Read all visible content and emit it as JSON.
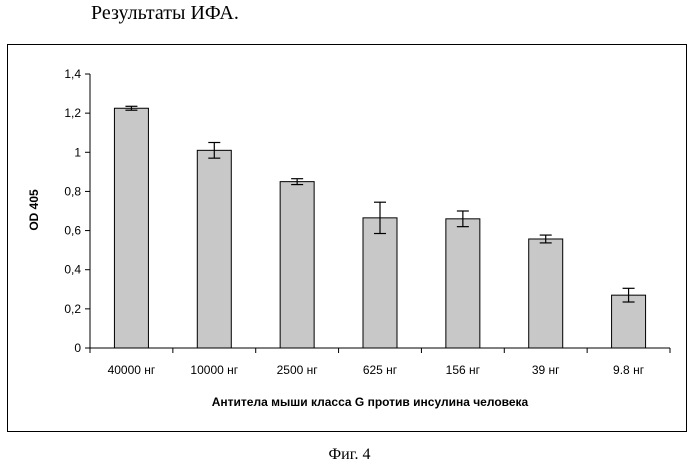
{
  "page": {
    "heading": "Результаты ИФА.",
    "caption": "Фиг. 4"
  },
  "colors": {
    "bar_fill": "#c8c8c8",
    "bar_stroke": "#000000",
    "axis": "#000000"
  },
  "chart_data": {
    "type": "bar",
    "title": "",
    "xlabel": "Антитела мыши класса G против инсулина человека",
    "ylabel": "OD 405",
    "categories": [
      "40000 нг",
      "10000 нг",
      "2500 нг",
      "625 нг",
      "156 нг",
      "39 нг",
      "9.8 нг"
    ],
    "values": [
      1.225,
      1.01,
      0.85,
      0.665,
      0.66,
      0.557,
      0.27
    ],
    "error": [
      0.01,
      0.04,
      0.015,
      0.08,
      0.04,
      0.02,
      0.035
    ],
    "ylim": [
      0,
      1.4
    ],
    "yticks": [
      "0",
      "0,2",
      "0,4",
      "0,6",
      "0,8",
      "1",
      "1,2",
      "1,4"
    ],
    "ytick_values": [
      0,
      0.2,
      0.4,
      0.6,
      0.8,
      1.0,
      1.2,
      1.4
    ],
    "grid": false,
    "legend": "none"
  }
}
